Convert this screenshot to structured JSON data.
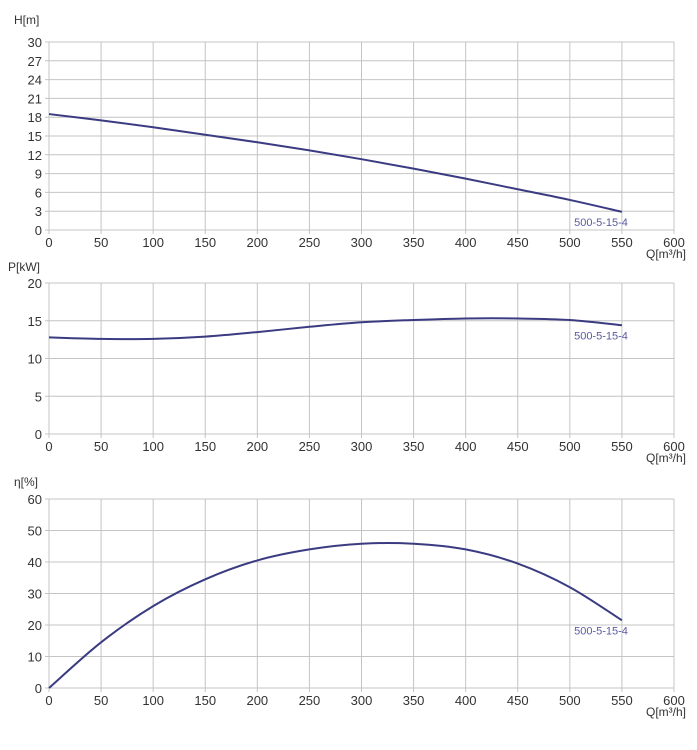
{
  "colors": {
    "curve": "#3b3b82",
    "series_label": "#5a5aa0",
    "grid": "#c4c4c4",
    "axis_text": "#333333"
  },
  "chart_data": [
    {
      "type": "line",
      "ylabel": "H[m]",
      "xlabel": "Q[m³/h]",
      "xlim": [
        0,
        600
      ],
      "ylim": [
        0,
        30
      ],
      "xticks": [
        0,
        50,
        100,
        150,
        200,
        250,
        300,
        350,
        400,
        450,
        500,
        550,
        600
      ],
      "yticks": [
        0,
        3,
        6,
        9,
        12,
        15,
        18,
        21,
        24,
        27,
        30
      ],
      "grid": true,
      "series": [
        {
          "name": "500-5-15-4",
          "x": [
            0,
            50,
            100,
            150,
            200,
            250,
            300,
            350,
            400,
            450,
            500,
            550
          ],
          "y": [
            18.5,
            17.5,
            16.4,
            15.2,
            14.0,
            12.7,
            11.3,
            9.8,
            8.2,
            6.5,
            4.8,
            2.9
          ]
        }
      ]
    },
    {
      "type": "line",
      "ylabel": "P[kW]",
      "xlabel": "Q[m³/h]",
      "xlim": [
        0,
        600
      ],
      "ylim": [
        0,
        20
      ],
      "xticks": [
        0,
        50,
        100,
        150,
        200,
        250,
        300,
        350,
        400,
        450,
        500,
        550,
        600
      ],
      "yticks": [
        0,
        5,
        10,
        15,
        20
      ],
      "grid": true,
      "series": [
        {
          "name": "500-5-15-4",
          "x": [
            0,
            50,
            100,
            150,
            200,
            250,
            300,
            350,
            400,
            450,
            500,
            550
          ],
          "y": [
            12.8,
            12.6,
            12.6,
            12.9,
            13.5,
            14.2,
            14.8,
            15.1,
            15.3,
            15.3,
            15.1,
            14.4
          ]
        }
      ]
    },
    {
      "type": "line",
      "ylabel": "η[%]",
      "xlabel": "Q[m³/h]",
      "xlim": [
        0,
        600
      ],
      "ylim": [
        0,
        60
      ],
      "xticks": [
        0,
        50,
        100,
        150,
        200,
        250,
        300,
        350,
        400,
        450,
        500,
        550,
        600
      ],
      "yticks": [
        0,
        10,
        20,
        30,
        40,
        50,
        60
      ],
      "grid": true,
      "series": [
        {
          "name": "500-5-15-4",
          "x": [
            0,
            50,
            100,
            150,
            200,
            250,
            300,
            350,
            400,
            450,
            500,
            550
          ],
          "y": [
            0,
            14.5,
            26,
            34.5,
            40.5,
            44,
            45.8,
            45.8,
            44,
            39.5,
            32,
            21.5
          ]
        }
      ]
    }
  ]
}
